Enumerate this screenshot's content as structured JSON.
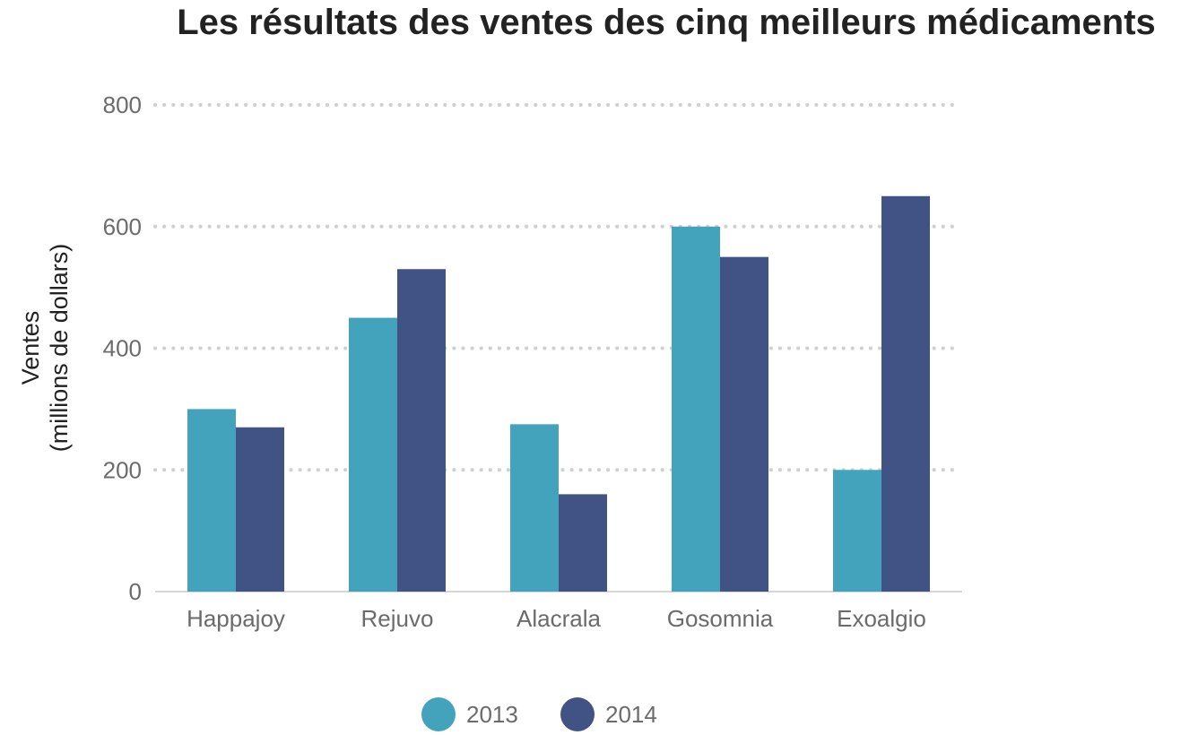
{
  "chart_data": {
    "type": "bar",
    "title": "Les résultats des ventes des cinq meilleurs médicaments",
    "xlabel": "",
    "ylabel_lines": [
      "Ventes",
      "(millions de dollars)"
    ],
    "categories": [
      "Happajoy",
      "Rejuvo",
      "Alacrala",
      "Gosomnia",
      "Exoalgio"
    ],
    "series": [
      {
        "name": "2013",
        "color": "#44a3bc",
        "values": [
          300,
          450,
          275,
          600,
          200
        ]
      },
      {
        "name": "2014",
        "color": "#415284",
        "values": [
          270,
          530,
          160,
          550,
          650
        ]
      }
    ],
    "ylim": [
      0,
      800
    ],
    "yticks": [
      0,
      200,
      400,
      600,
      800
    ],
    "grid": true,
    "legend_position": "bottom-center"
  }
}
